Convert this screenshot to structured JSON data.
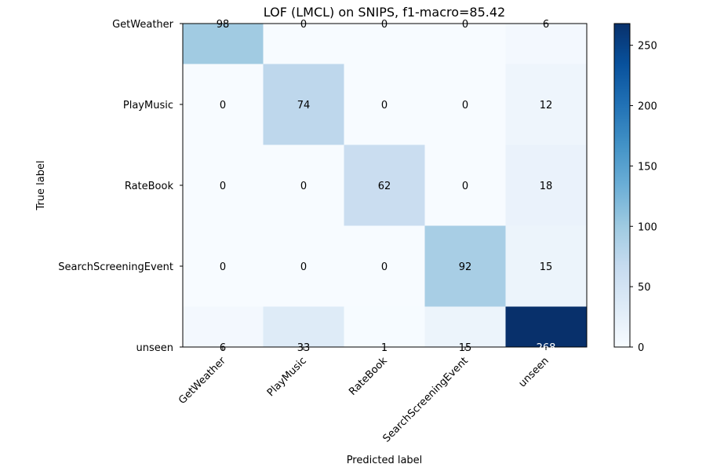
{
  "chart_data": {
    "type": "heatmap",
    "title": "LOF (LMCL) on SNIPS, f1-macro=85.42",
    "xlabel": "Predicted label",
    "ylabel": "True label",
    "x_categories": [
      "GetWeather",
      "PlayMusic",
      "RateBook",
      "SearchScreeningEvent",
      "unseen"
    ],
    "y_categories": [
      "GetWeather",
      "PlayMusic",
      "RateBook",
      "SearchScreeningEvent",
      "unseen"
    ],
    "values": [
      [
        98,
        0,
        0,
        0,
        6
      ],
      [
        0,
        74,
        0,
        0,
        12
      ],
      [
        0,
        0,
        62,
        0,
        18
      ],
      [
        0,
        0,
        0,
        92,
        15
      ],
      [
        6,
        33,
        1,
        15,
        268
      ]
    ],
    "colormap": "Blues",
    "vmin": 0,
    "vmax": 268,
    "colorbar": {
      "ticks": [
        0,
        50,
        100,
        150,
        200,
        250
      ],
      "tick_labels": [
        "0",
        "50",
        "100",
        "150",
        "200",
        "250"
      ]
    }
  }
}
